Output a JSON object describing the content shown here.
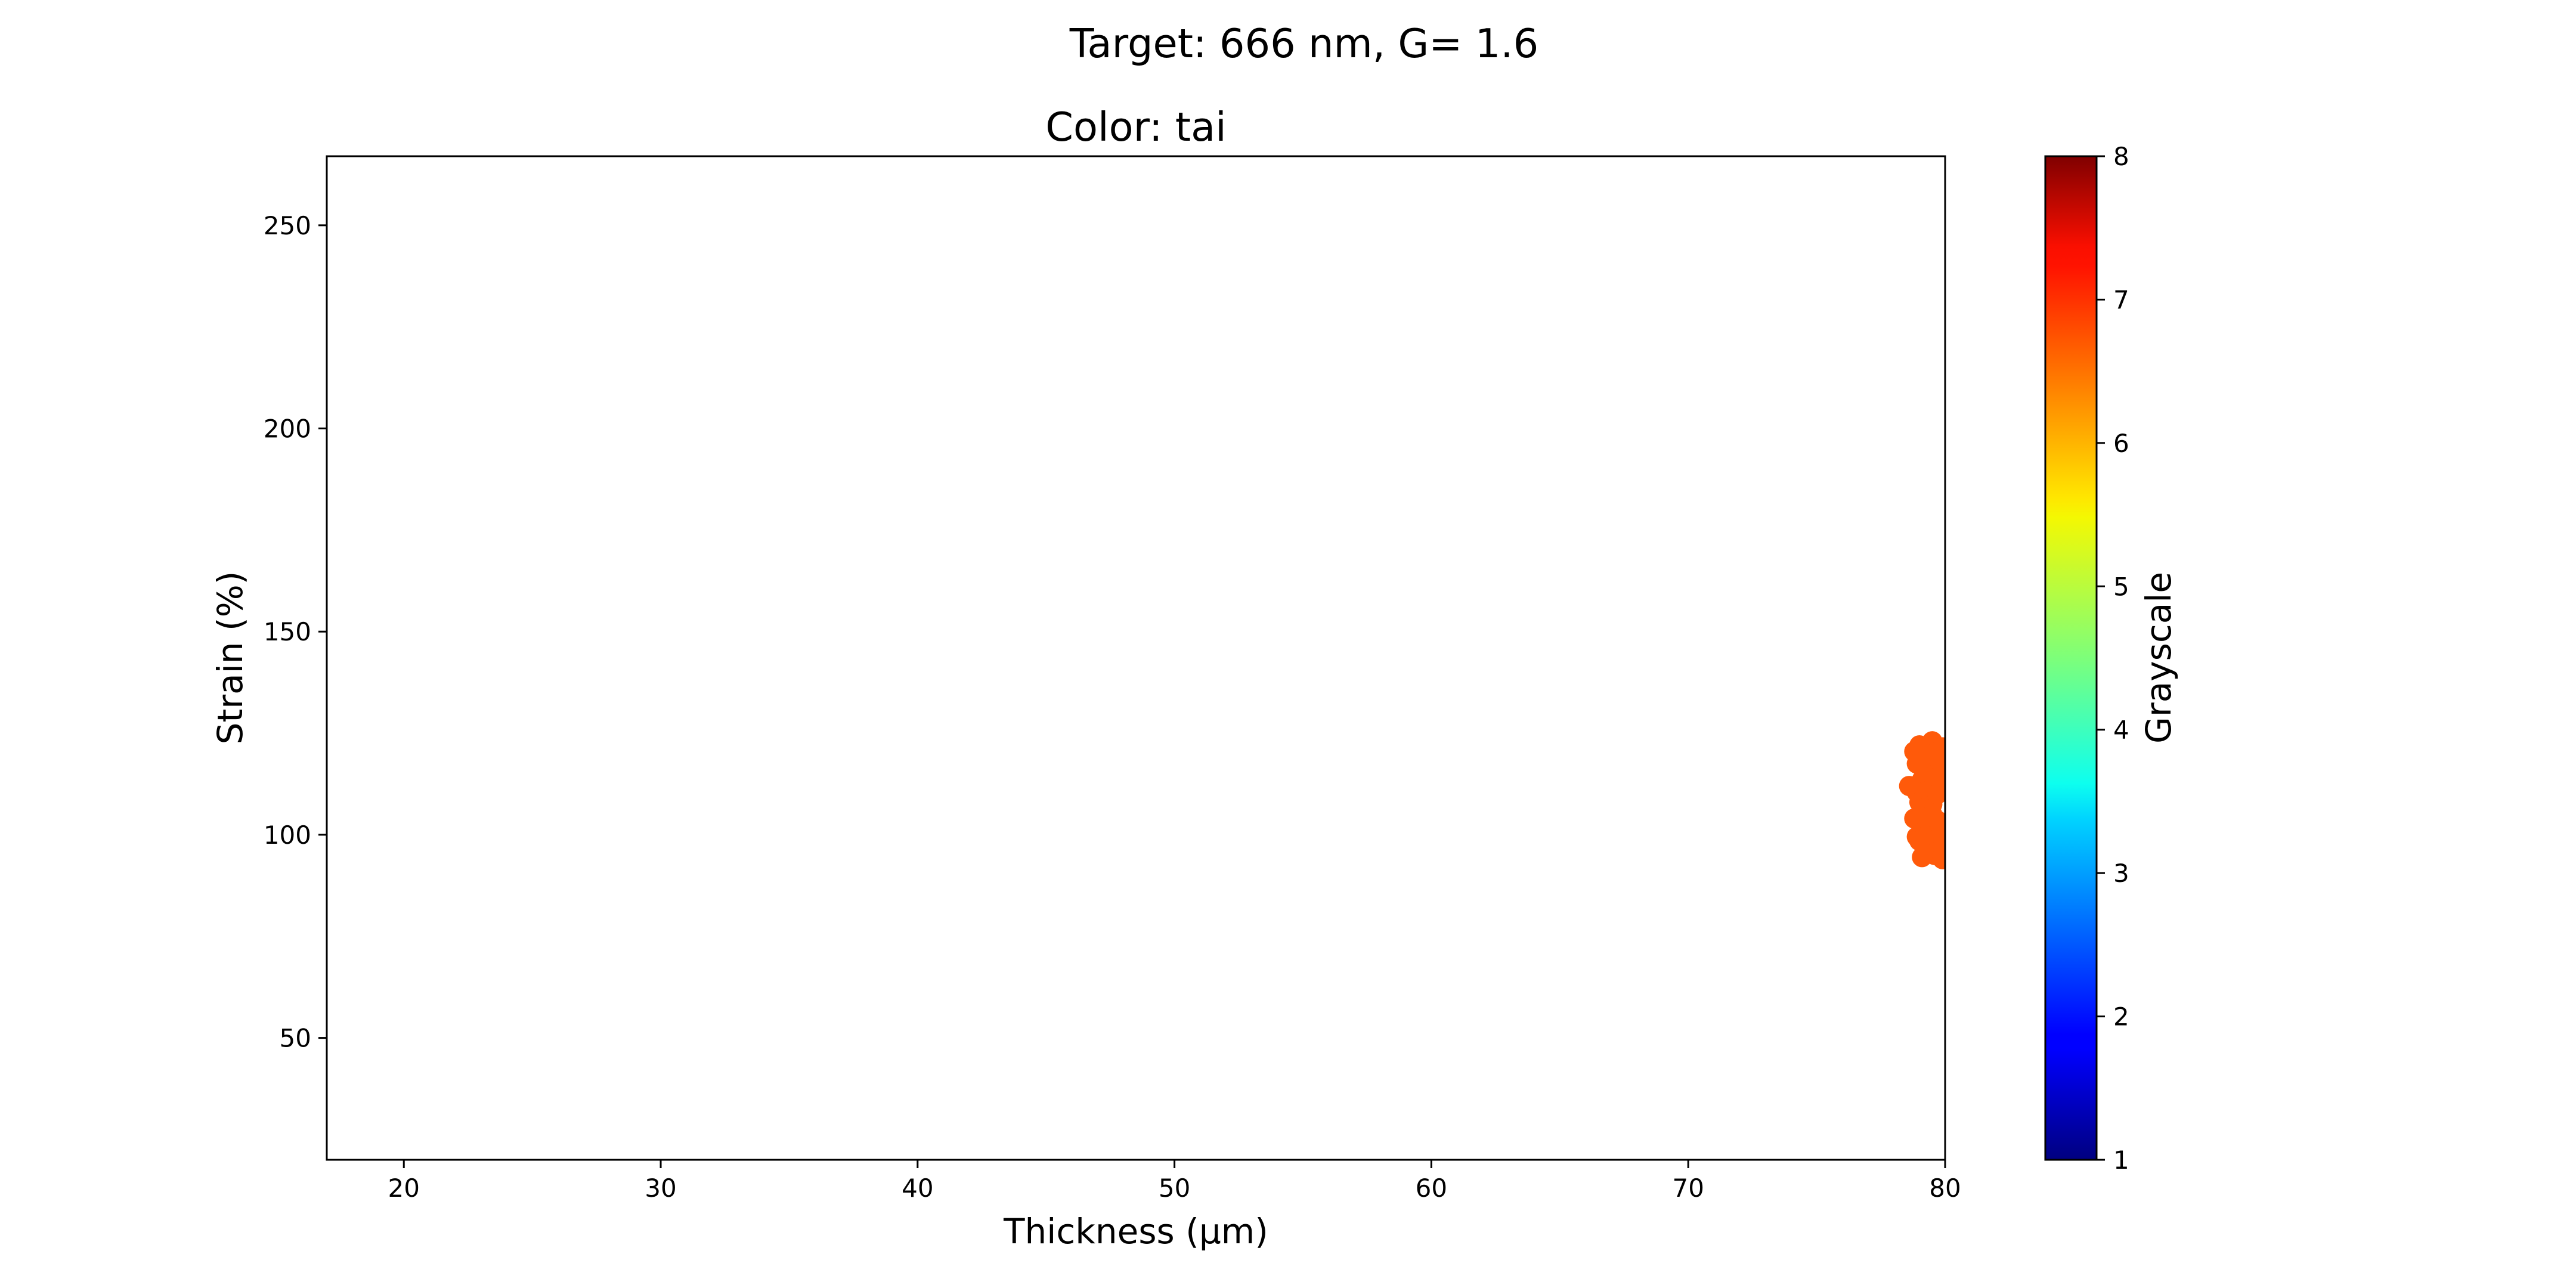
{
  "figure": {
    "suptitle": "Target: 666 nm, G= 1.6"
  },
  "chart_data": {
    "type": "scatter",
    "title": "Color: tai",
    "xlabel": "Thickness (μm)",
    "ylabel": "Strain (%)",
    "xlim": [
      17,
      80
    ],
    "ylim": [
      20,
      267
    ],
    "xticks": [
      20,
      30,
      40,
      50,
      60,
      70,
      80
    ],
    "yticks": [
      50,
      100,
      150,
      200,
      250
    ],
    "grid": false,
    "colorbar": {
      "label": "Grayscale",
      "colormap": "jet",
      "range": [
        1,
        8
      ],
      "ticks": [
        1,
        2,
        3,
        4,
        5,
        6,
        7,
        8
      ]
    },
    "marker_color": "#ff5a0a",
    "series": [
      {
        "x": [
          79.5,
          79.0,
          78.8,
          79.9,
          79.2,
          78.9,
          79.6,
          78.6,
          79.3,
          79.1,
          79.7,
          78.9,
          79.4,
          79.0,
          79.8,
          79.2,
          78.8,
          79.6,
          79.3,
          79.9,
          79.1,
          79.5,
          78.9,
          79.7,
          79.2,
          79.8,
          79.4,
          79.0,
          79.6,
          79.9,
          79.3,
          79.1,
          79.7,
          79.5,
          79.8,
          79.2,
          79.6,
          79.4,
          79.9,
          79.7
        ],
        "y": [
          123.0,
          122.0,
          120.5,
          121.5,
          119.0,
          117.5,
          118.5,
          112.0,
          115.5,
          113.5,
          116.0,
          110.5,
          111.0,
          108.0,
          114.0,
          106.5,
          104.0,
          109.5,
          102.0,
          112.5,
          100.5,
          105.0,
          99.5,
          103.5,
          97.5,
          101.0,
          96.0,
          98.5,
          95.0,
          94.0,
          96.5,
          94.5,
          99.0,
          107.5,
          118.0,
          120.0,
          113.0,
          104.5,
          97.0,
          110.0
        ],
        "value": [
          6.65,
          6.65,
          6.65,
          6.65,
          6.65,
          6.65,
          6.65,
          6.65,
          6.65,
          6.65,
          6.65,
          6.65,
          6.65,
          6.65,
          6.65,
          6.65,
          6.65,
          6.65,
          6.65,
          6.65,
          6.65,
          6.65,
          6.65,
          6.65,
          6.65,
          6.65,
          6.65,
          6.65,
          6.65,
          6.65,
          6.65,
          6.65,
          6.65,
          6.65,
          6.65,
          6.65,
          6.65,
          6.65,
          6.65,
          6.65
        ]
      }
    ]
  }
}
